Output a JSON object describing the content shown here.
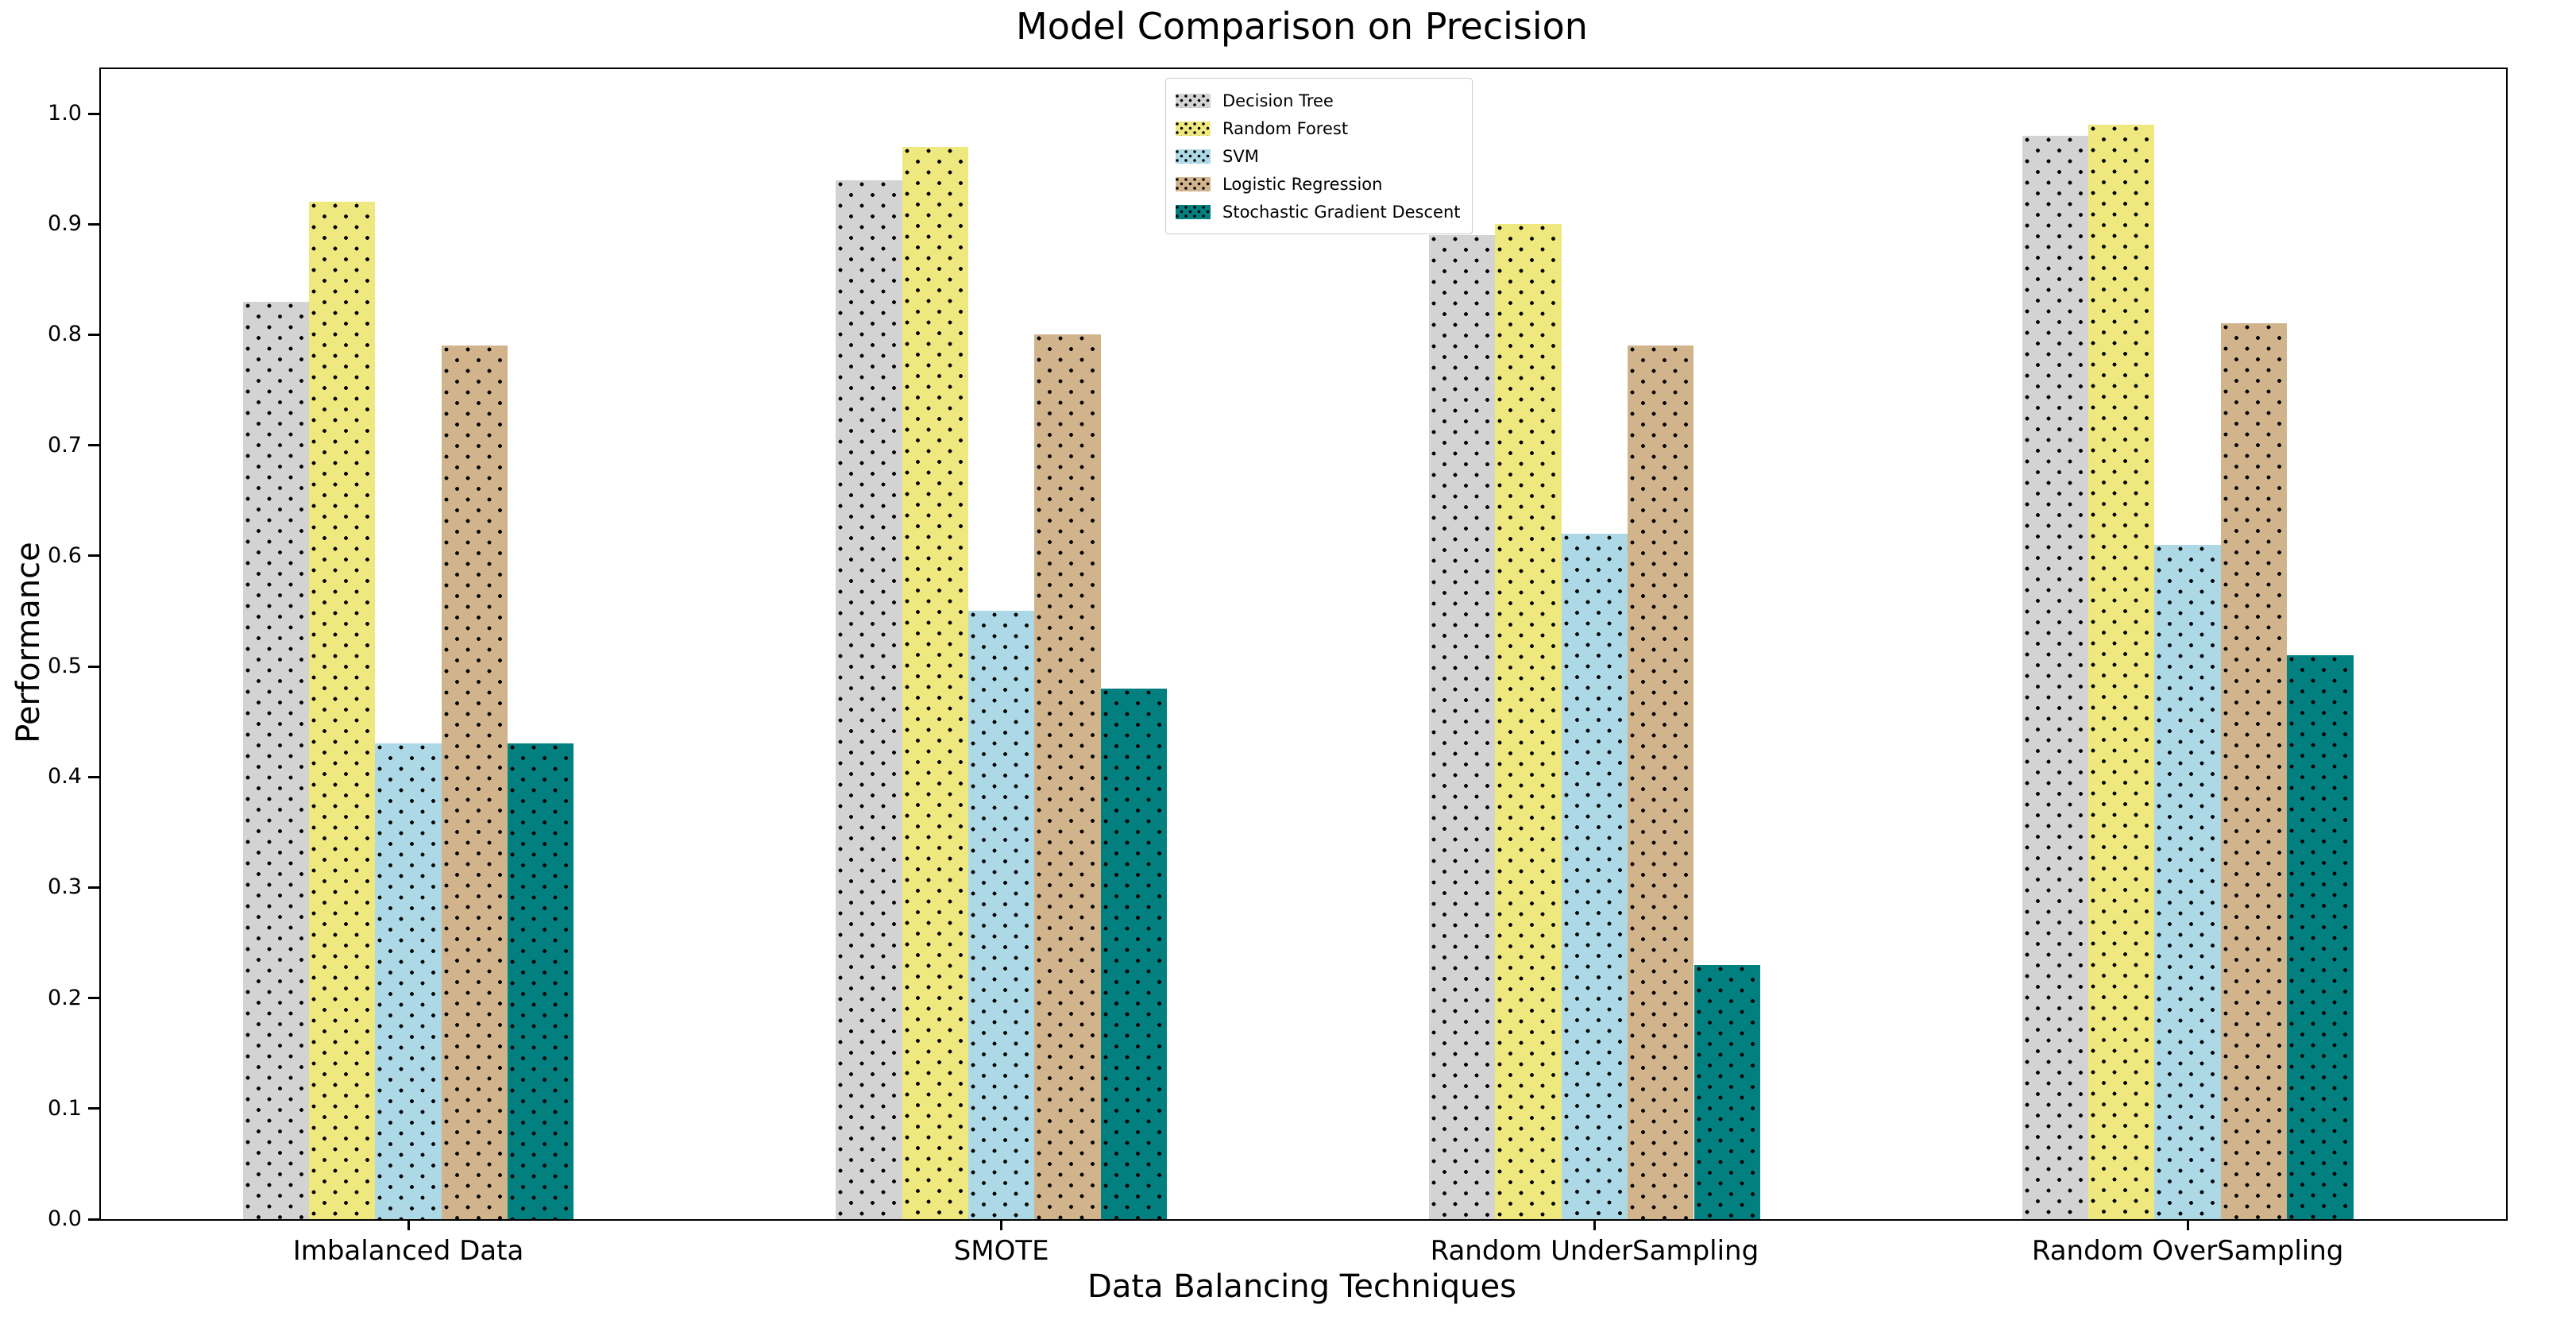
{
  "chart_data": {
    "type": "bar",
    "title": "Model Comparison on Precision",
    "xlabel": "Data Balancing Techniques",
    "ylabel": "Performance",
    "categories": [
      "Imbalanced Data",
      "SMOTE",
      "Random UnderSampling",
      "Random OverSampling"
    ],
    "series": [
      {
        "name": "Decision Tree",
        "color": "#d3d3d3",
        "values": [
          0.83,
          0.94,
          0.89,
          0.98
        ]
      },
      {
        "name": "Random Forest",
        "color": "#efe87f",
        "values": [
          0.92,
          0.97,
          0.9,
          0.99
        ]
      },
      {
        "name": "SVM",
        "color": "#add8e6",
        "values": [
          0.43,
          0.55,
          0.62,
          0.61
        ]
      },
      {
        "name": "Logistic Regression",
        "color": "#d2b48c",
        "values": [
          0.79,
          0.8,
          0.79,
          0.81
        ]
      },
      {
        "name": "Stochastic Gradient Descent",
        "color": "#028080",
        "values": [
          0.43,
          0.48,
          0.23,
          0.51
        ]
      }
    ],
    "yticks": [
      "0.0",
      "0.1",
      "0.2",
      "0.3",
      "0.4",
      "0.5",
      "0.6",
      "0.7",
      "0.8",
      "0.9",
      "1.0"
    ],
    "ylim": [
      0.0,
      1.04
    ],
    "grid": false,
    "hatch": "dots",
    "legend_position": "upper center",
    "bar_style": "grouped, 5 contiguous bars per category, black dotted hatch"
  }
}
